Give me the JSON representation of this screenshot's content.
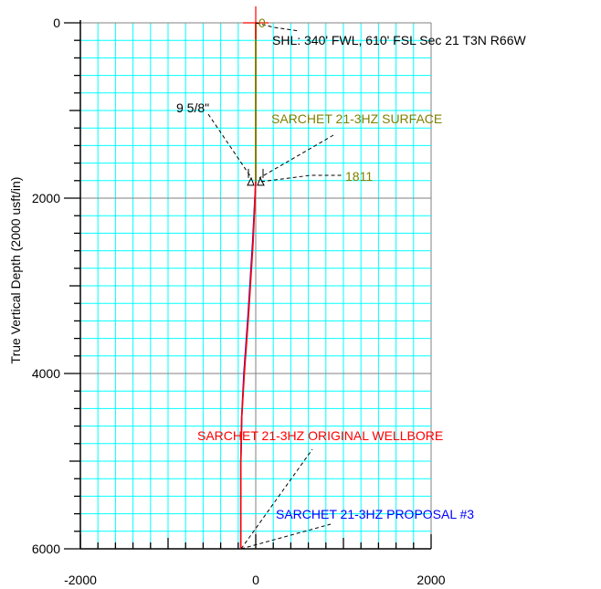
{
  "chart_data": {
    "type": "line",
    "title": "",
    "xlabel": "",
    "ylabel": "True Vertical Depth (2000 usft/in)",
    "xlim": [
      -2000,
      2000
    ],
    "ylim": [
      0,
      6000
    ],
    "y_inverted": true,
    "x_ticks": [
      "-2000",
      "0",
      "2000"
    ],
    "y_ticks": [
      "0",
      "2000",
      "4000",
      "6000"
    ],
    "grid": true,
    "series": [
      {
        "name": "SARCHET 21-3HZ SURFACE",
        "color": "#808000",
        "x": [
          0,
          0,
          0
        ],
        "y": [
          0,
          1000,
          1811
        ]
      },
      {
        "name": "SARCHET 21-3HZ ORIGINAL WELLBORE",
        "color": "#ff0000",
        "x": [
          0,
          -30,
          -80,
          -130,
          -160,
          -170,
          -170
        ],
        "y": [
          1811,
          2500,
          3300,
          4000,
          4500,
          5000,
          6000
        ]
      },
      {
        "name": "SARCHET 21-3HZ PROPOSAL #3",
        "color": "#0000ff",
        "x": [
          0,
          -35,
          -85,
          -135,
          -160,
          -170,
          -170
        ],
        "y": [
          1811,
          2500,
          3300,
          4000,
          4500,
          5000,
          6000
        ]
      }
    ],
    "annotations": [
      {
        "id": "zero",
        "text": "0",
        "color": "#808000"
      },
      {
        "id": "shl",
        "text": "SHL: 340' FWL, 610' FSL Sec 21 T3N R66W",
        "color": "#000000"
      },
      {
        "id": "casing",
        "text": "9 5/8\"",
        "color": "#000000"
      },
      {
        "id": "surface",
        "text": "SARCHET 21-3HZ SURFACE",
        "color": "#808000"
      },
      {
        "id": "depth",
        "text": "1811",
        "color": "#808000"
      },
      {
        "id": "original",
        "text": "SARCHET 21-3HZ ORIGINAL WELLBORE",
        "color": "#ff0000"
      },
      {
        "id": "proposal",
        "text": "SARCHET 21-3HZ PROPOSAL #3",
        "color": "#0000ff"
      }
    ]
  }
}
